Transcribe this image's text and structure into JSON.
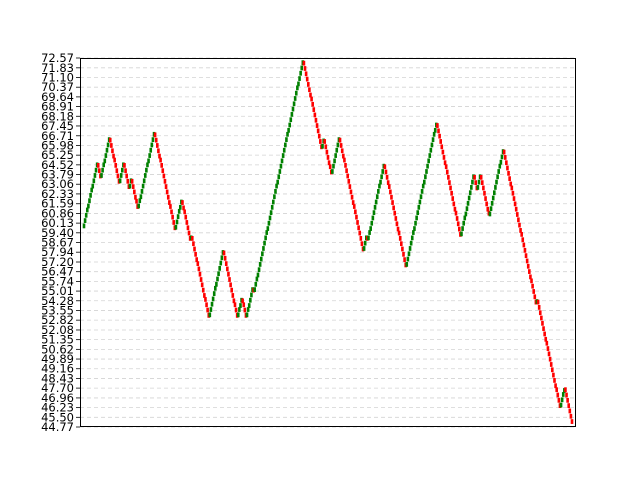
{
  "chart_data": {
    "type": "line",
    "title": "",
    "xlabel": "",
    "ylabel": "",
    "ylim": [
      44.77,
      72.57
    ],
    "yticks": [
      "44.77",
      "45.50",
      "46.23",
      "46.96",
      "47.70",
      "48.43",
      "49.16",
      "49.89",
      "50.62",
      "51.35",
      "52.08",
      "52.82",
      "53.55",
      "54.28",
      "55.01",
      "55.74",
      "56.47",
      "57.20",
      "57.94",
      "58.67",
      "59.40",
      "60.13",
      "60.86",
      "61.59",
      "62.33",
      "63.06",
      "63.79",
      "64.52",
      "65.25",
      "65.98",
      "66.71",
      "67.45",
      "68.18",
      "68.91",
      "69.64",
      "70.37",
      "71.10",
      "71.83",
      "72.57"
    ],
    "grid": "horizontal dashed",
    "up_color": "#008000",
    "down_color": "#ff0000",
    "brick_size": 0.36,
    "series": [
      {
        "values": [
          60.1,
          60.5,
          60.9,
          61.3,
          61.6,
          62.0,
          62.4,
          62.8,
          63.1,
          63.5,
          63.9,
          64.3,
          64.7,
          64.3,
          63.9,
          63.5,
          63.9,
          64.3,
          64.7,
          65.0,
          65.4,
          65.8,
          66.2,
          66.6,
          66.2,
          65.8,
          65.4,
          65.0,
          64.7,
          64.3,
          63.9,
          63.5,
          63.1,
          63.5,
          63.9,
          64.3,
          64.7,
          64.3,
          63.9,
          63.5,
          63.1,
          62.7,
          63.1,
          63.5,
          63.1,
          62.7,
          62.3,
          61.9,
          61.6,
          61.2,
          61.6,
          62.0,
          62.3,
          62.7,
          63.1,
          63.5,
          63.9,
          64.3,
          64.7,
          65.0,
          65.4,
          65.8,
          66.2,
          66.6,
          67.0,
          66.6,
          66.2,
          65.8,
          65.4,
          65.0,
          64.7,
          64.3,
          63.9,
          63.5,
          63.1,
          62.7,
          62.3,
          61.9,
          61.5,
          61.2,
          60.8,
          60.4,
          60.0,
          59.6,
          60.0,
          60.4,
          60.8,
          61.2,
          61.5,
          61.9,
          61.5,
          61.1,
          60.8,
          60.4,
          60.0,
          59.6,
          59.2,
          58.8,
          59.2,
          58.8,
          58.4,
          58.0,
          57.6,
          57.2,
          56.9,
          56.5,
          56.1,
          55.7,
          55.3,
          54.9,
          54.5,
          54.2,
          53.8,
          53.4,
          53.0,
          53.4,
          53.8,
          54.2,
          54.6,
          55.0,
          55.4,
          55.7,
          56.1,
          56.5,
          56.9,
          57.3,
          57.7,
          58.1,
          57.7,
          57.3,
          56.9,
          56.5,
          56.1,
          55.7,
          55.3,
          54.9,
          54.5,
          54.1,
          53.8,
          53.4,
          53.0,
          53.4,
          53.8,
          54.1,
          54.5,
          54.1,
          53.8,
          53.4,
          53.0,
          53.4,
          53.8,
          54.1,
          54.5,
          54.9,
          55.3,
          54.9,
          55.3,
          55.7,
          56.1,
          56.4,
          56.8,
          57.2,
          57.6,
          58.0,
          58.4,
          58.8,
          59.2,
          59.6,
          59.9,
          60.3,
          60.7,
          61.1,
          61.5,
          61.9,
          62.3,
          62.7,
          63.1,
          63.4,
          63.8,
          64.2,
          64.6,
          65.0,
          65.4,
          65.8,
          66.2,
          66.6,
          67.0,
          67.3,
          67.7,
          68.1,
          68.5,
          68.9,
          69.3,
          69.7,
          70.1,
          70.5,
          70.8,
          71.2,
          71.6,
          72.0,
          72.4,
          72.0,
          71.6,
          71.2,
          70.8,
          70.4,
          70.0,
          69.6,
          69.3,
          68.9,
          68.5,
          68.1,
          67.7,
          67.3,
          66.9,
          66.5,
          66.1,
          65.7,
          66.1,
          66.5,
          66.1,
          65.7,
          65.3,
          64.9,
          64.5,
          64.2,
          63.8,
          64.2,
          64.6,
          65.0,
          65.4,
          65.8,
          66.2,
          66.6,
          66.2,
          65.8,
          65.4,
          65.0,
          64.7,
          64.3,
          63.9,
          63.5,
          63.1,
          62.7,
          62.3,
          61.9,
          61.5,
          61.2,
          60.8,
          60.4,
          60.0,
          59.6,
          59.2,
          58.8,
          58.4,
          58.0,
          58.4,
          58.8,
          59.2,
          58.8,
          59.2,
          59.6,
          59.9,
          60.3,
          60.7,
          61.1,
          61.5,
          61.9,
          62.3,
          62.7,
          63.1,
          63.4,
          63.8,
          64.2,
          64.6,
          64.2,
          63.8,
          63.4,
          63.0,
          62.7,
          62.3,
          61.9,
          61.5,
          61.1,
          60.7,
          60.3,
          59.9,
          59.5,
          59.2,
          58.8,
          58.4,
          58.0,
          57.6,
          57.2,
          56.8,
          57.2,
          57.6,
          58.0,
          58.4,
          58.8,
          59.2,
          59.6,
          59.9,
          60.3,
          60.7,
          61.1,
          61.5,
          61.9,
          62.3,
          62.7,
          63.1,
          63.4,
          63.8,
          64.2,
          64.6,
          65.0,
          65.4,
          65.8,
          66.2,
          66.6,
          67.0,
          67.3,
          67.7,
          67.3,
          66.9,
          66.5,
          66.1,
          65.7,
          65.3,
          64.9,
          64.5,
          64.2,
          63.8,
          63.4,
          63.0,
          62.6,
          62.2,
          61.8,
          61.4,
          61.0,
          60.7,
          60.3,
          59.9,
          59.5,
          59.1,
          59.5,
          59.9,
          60.3,
          60.7,
          61.0,
          61.4,
          61.8,
          62.2,
          62.6,
          63.0,
          63.4,
          63.8,
          63.4,
          63.0,
          62.6,
          63.0,
          63.4,
          63.8,
          63.4,
          63.0,
          62.6,
          62.2,
          61.8,
          61.4,
          61.0,
          60.7,
          61.0,
          61.4,
          61.8,
          62.2,
          62.6,
          63.0,
          63.4,
          63.8,
          64.2,
          64.6,
          64.9,
          65.3,
          65.7,
          65.3,
          64.9,
          64.5,
          64.1,
          63.7,
          63.3,
          62.9,
          62.6,
          62.2,
          61.8,
          61.4,
          61.0,
          60.6,
          60.2,
          59.8,
          59.4,
          59.1,
          58.7,
          58.3,
          57.9,
          57.5,
          57.1,
          56.7,
          56.3,
          55.9,
          55.6,
          55.2,
          54.8,
          54.4,
          54.0,
          54.4,
          54.0,
          53.6,
          53.2,
          52.8,
          52.4,
          52.0,
          51.6,
          51.2,
          50.9,
          50.5,
          50.1,
          49.7,
          49.3,
          48.9,
          48.5,
          48.1,
          47.7,
          47.4,
          47.0,
          46.6,
          46.2,
          46.6,
          47.0,
          47.4,
          47.7,
          47.4,
          47.0,
          46.6,
          46.2,
          45.8,
          45.4,
          45.0
        ]
      }
    ]
  }
}
